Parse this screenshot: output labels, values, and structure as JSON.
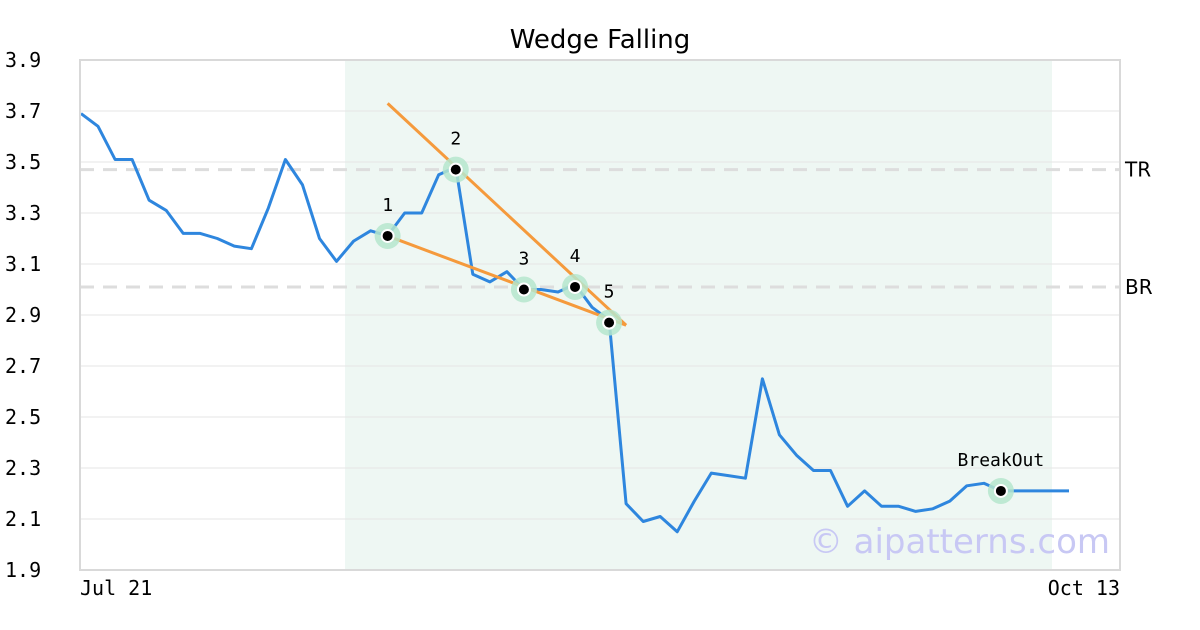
{
  "chart_data": {
    "type": "line",
    "title": "Wedge Falling",
    "xlabel": "",
    "ylabel": "",
    "x_tick_labels": [
      "Jul 21",
      "Oct 13"
    ],
    "y_ticks": [
      1.9,
      2.1,
      2.3,
      2.5,
      2.7,
      2.9,
      3.1,
      3.3,
      3.5,
      3.7,
      3.9
    ],
    "ylim": [
      1.9,
      3.9
    ],
    "grid": true,
    "series": [
      {
        "values": [
          3.69,
          3.64,
          3.51,
          3.51,
          3.35,
          3.31,
          3.22,
          3.22,
          3.2,
          3.17,
          3.16,
          3.32,
          3.51,
          3.41,
          3.2,
          3.11,
          3.19,
          3.23,
          3.21,
          3.3,
          3.3,
          3.45,
          3.48,
          3.06,
          3.03,
          3.07,
          3.0,
          3.0,
          2.99,
          3.02,
          2.93,
          2.88,
          2.16,
          2.09,
          2.11,
          2.05,
          2.17,
          2.28,
          2.27,
          2.26,
          2.65,
          2.43,
          2.35,
          2.29,
          2.29,
          2.15,
          2.21,
          2.15,
          2.15,
          2.13,
          2.14,
          2.17,
          2.23,
          2.24,
          2.21,
          2.21,
          2.21,
          2.21,
          2.21
        ],
        "color": "#2e86de"
      }
    ],
    "pattern_region": {
      "start_index": 16,
      "end_index": 57,
      "color": "#eef7f3"
    },
    "reference_lines": [
      {
        "label": "TR",
        "value": 3.47
      },
      {
        "label": "BR",
        "value": 3.01
      }
    ],
    "trend_lines": [
      {
        "from": [
          18,
          3.73
        ],
        "to": [
          32,
          2.86
        ],
        "color": "#f59a3c"
      },
      {
        "from": [
          18,
          3.21
        ],
        "to": [
          32,
          2.86
        ],
        "color": "#f59a3c"
      }
    ],
    "pattern_points": [
      {
        "label": "1",
        "index": 18,
        "value": 3.21
      },
      {
        "label": "2",
        "index": 22,
        "value": 3.47
      },
      {
        "label": "3",
        "index": 26,
        "value": 3.0
      },
      {
        "label": "4",
        "index": 29,
        "value": 3.01
      },
      {
        "label": "5",
        "index": 31,
        "value": 2.87
      },
      {
        "label": "BreakOut",
        "index": 54,
        "value": 2.21
      }
    ],
    "watermark": "© aipatterns.com"
  }
}
